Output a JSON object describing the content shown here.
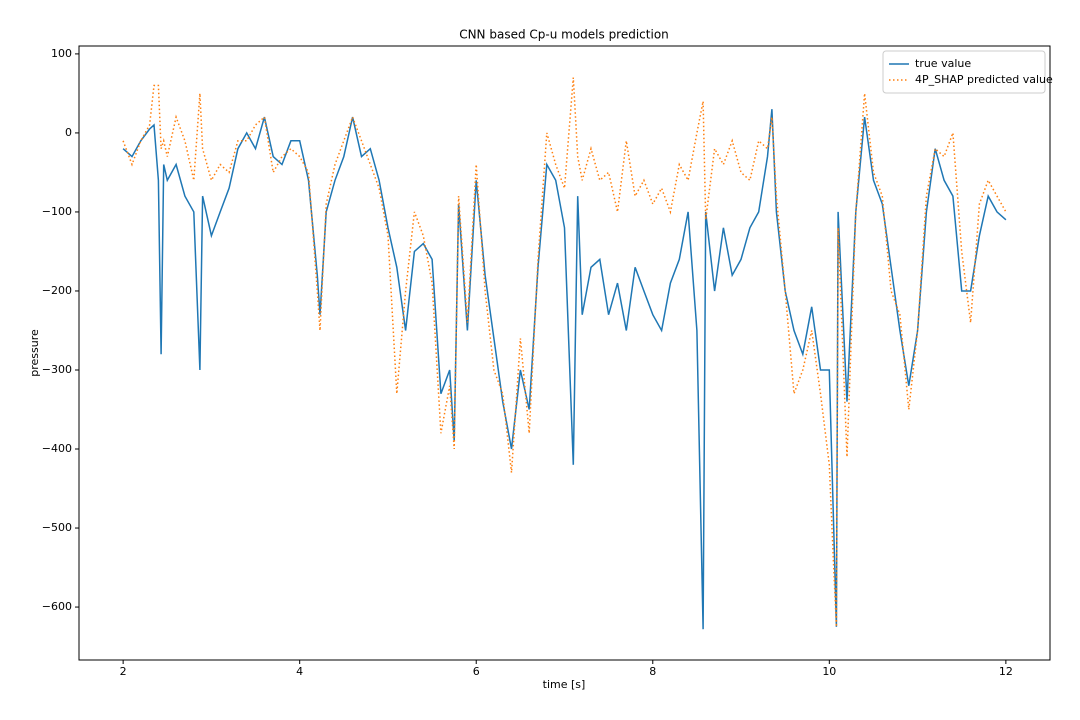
{
  "chart_data": {
    "type": "line",
    "title": "CNN based Cp-u models prediction",
    "x_label": "time [s]",
    "y_label": "pressure",
    "x": [
      2.0,
      2.1,
      2.2,
      2.3,
      2.35,
      2.4,
      2.43,
      2.46,
      2.5,
      2.6,
      2.7,
      2.8,
      2.87,
      2.9,
      3.0,
      3.1,
      3.2,
      3.3,
      3.4,
      3.5,
      3.6,
      3.7,
      3.8,
      3.9,
      4.0,
      4.1,
      4.2,
      4.23,
      4.3,
      4.4,
      4.5,
      4.6,
      4.7,
      4.8,
      4.9,
      5.0,
      5.1,
      5.2,
      5.3,
      5.4,
      5.5,
      5.6,
      5.7,
      5.75,
      5.8,
      5.9,
      6.0,
      6.1,
      6.2,
      6.3,
      6.4,
      6.5,
      6.6,
      6.7,
      6.8,
      6.9,
      7.0,
      7.1,
      7.15,
      7.2,
      7.3,
      7.4,
      7.5,
      7.6,
      7.7,
      7.8,
      7.9,
      8.0,
      8.1,
      8.2,
      8.3,
      8.4,
      8.5,
      8.57,
      8.6,
      8.7,
      8.8,
      8.9,
      9.0,
      9.1,
      9.2,
      9.3,
      9.35,
      9.4,
      9.5,
      9.6,
      9.7,
      9.8,
      9.9,
      10.0,
      10.05,
      10.08,
      10.1,
      10.2,
      10.3,
      10.4,
      10.5,
      10.6,
      10.7,
      10.8,
      10.9,
      11.0,
      11.1,
      11.2,
      11.3,
      11.4,
      11.5,
      11.6,
      11.7,
      11.8,
      11.9,
      12.0
    ],
    "series": [
      {
        "name": "true value",
        "color": "#1f77b4",
        "linestyle": "solid",
        "values": [
          -20,
          -30,
          -10,
          5,
          10,
          -60,
          -280,
          -40,
          -60,
          -40,
          -80,
          -100,
          -300,
          -80,
          -130,
          -100,
          -70,
          -20,
          0,
          -20,
          20,
          -30,
          -40,
          -10,
          -10,
          -60,
          -180,
          -230,
          -100,
          -60,
          -30,
          20,
          -30,
          -20,
          -60,
          -120,
          -170,
          -250,
          -150,
          -140,
          -160,
          -330,
          -300,
          -390,
          -90,
          -250,
          -60,
          -180,
          -260,
          -340,
          -400,
          -300,
          -350,
          -170,
          -40,
          -60,
          -120,
          -420,
          -80,
          -230,
          -170,
          -160,
          -230,
          -190,
          -250,
          -170,
          -200,
          -230,
          -250,
          -190,
          -160,
          -100,
          -250,
          -628,
          -100,
          -200,
          -120,
          -180,
          -160,
          -120,
          -100,
          -30,
          30,
          -100,
          -200,
          -250,
          -280,
          -220,
          -300,
          -300,
          -500,
          -625,
          -100,
          -340,
          -100,
          20,
          -60,
          -90,
          -170,
          -250,
          -320,
          -250,
          -100,
          -20,
          -60,
          -80,
          -200,
          -200,
          -130,
          -80,
          -100,
          -110
        ]
      },
      {
        "name": "4P_SHAP predicted value",
        "color": "#ff7f0e",
        "linestyle": "dotted",
        "values": [
          -10,
          -40,
          -10,
          10,
          60,
          60,
          -20,
          -10,
          -30,
          20,
          -10,
          -60,
          50,
          -20,
          -60,
          -40,
          -50,
          -10,
          -10,
          10,
          20,
          -50,
          -30,
          -20,
          -30,
          -50,
          -200,
          -250,
          -90,
          -40,
          -10,
          20,
          -10,
          -40,
          -70,
          -130,
          -330,
          -200,
          -100,
          -130,
          -190,
          -380,
          -320,
          -400,
          -80,
          -240,
          -40,
          -200,
          -300,
          -330,
          -430,
          -260,
          -380,
          -160,
          0,
          -40,
          -70,
          70,
          -30,
          -60,
          -20,
          -60,
          -50,
          -100,
          -10,
          -80,
          -60,
          -90,
          -70,
          -100,
          -40,
          -60,
          0,
          40,
          -110,
          -20,
          -40,
          -10,
          -50,
          -60,
          -10,
          -20,
          20,
          -80,
          -200,
          -330,
          -300,
          -250,
          -330,
          -420,
          -550,
          -625,
          -120,
          -410,
          -100,
          50,
          -50,
          -80,
          -200,
          -230,
          -350,
          -250,
          -80,
          -20,
          -30,
          0,
          -150,
          -240,
          -90,
          -60,
          -80,
          -100
        ]
      }
    ],
    "xlim": [
      1.5,
      12.5
    ],
    "ylim": [
      -667,
      110
    ],
    "xticks": [
      2,
      4,
      6,
      8,
      10,
      12
    ],
    "yticks": [
      {
        "value": -600,
        "label": "−600"
      },
      {
        "value": -500,
        "label": "−500"
      },
      {
        "value": -400,
        "label": "−400"
      },
      {
        "value": -300,
        "label": "−300"
      },
      {
        "value": -200,
        "label": "−200"
      },
      {
        "value": -100,
        "label": "−100"
      },
      0,
      100
    ],
    "grid": false,
    "legend": "upper right"
  }
}
